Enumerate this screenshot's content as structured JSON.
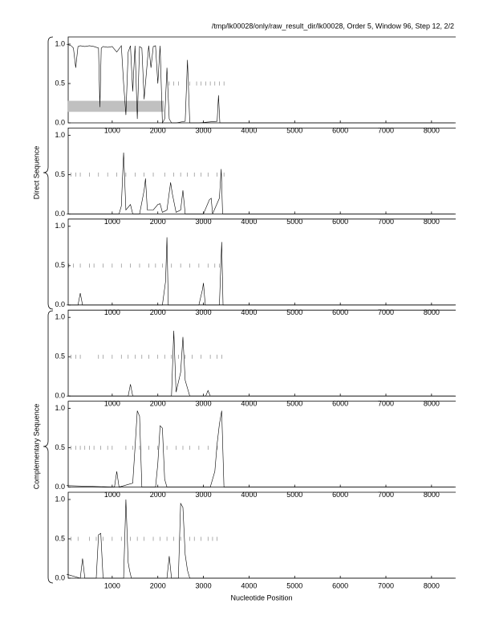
{
  "title": "/tmp/lk00028/only/raw_result_dir/lk00028, Order 5, Window 96, Step 12, 2/2",
  "group_labels": [
    "Direct Sequence",
    "Complementary Sequence"
  ],
  "xlabel": "Nucleotide Position",
  "chart_data": [
    {
      "type": "line",
      "color": "#000000",
      "x": [
        0,
        100,
        150,
        200,
        250,
        300,
        400,
        500,
        600,
        700,
        730,
        760,
        800,
        900,
        1000,
        1100,
        1200,
        1250,
        1300,
        1350,
        1400,
        1450,
        1500,
        1550,
        1600,
        1650,
        1700,
        1800,
        1850,
        1900,
        1950,
        2000,
        2050,
        2100,
        2150,
        2200,
        2250,
        2300,
        2400,
        2600,
        2650,
        2700,
        2750,
        2900,
        3300,
        3330,
        3360,
        3400,
        3600,
        8500
      ],
      "values": [
        1,
        0.98,
        0.95,
        0.7,
        0.97,
        0.98,
        0.97,
        0.98,
        0.97,
        0.95,
        0.2,
        0.95,
        0.97,
        0.96,
        0.97,
        0.9,
        0.98,
        0.5,
        0.1,
        0.9,
        0.98,
        0.4,
        0.98,
        0.05,
        0.97,
        0.95,
        0.3,
        0.98,
        0.7,
        0.97,
        0.98,
        0.5,
        0.98,
        0,
        0.05,
        0.7,
        0.05,
        0,
        0,
        0.02,
        0.8,
        0,
        0,
        0,
        0.02,
        0.35,
        0,
        0,
        0,
        0
      ],
      "tick_marks": [
        2250,
        2350,
        2450,
        2700,
        2850,
        2950,
        3050,
        3150,
        3250,
        3350,
        3450
      ],
      "tick_mark_level": 0.5,
      "region": {
        "x": [
          30,
          2130
        ],
        "y": [
          0.14,
          0.28
        ],
        "color": "#c0c0c0"
      },
      "xlim": [
        0,
        8530
      ],
      "xticks": [
        1000,
        2000,
        3000,
        4000,
        5000,
        6000,
        7000,
        8000
      ],
      "ylim": [
        0,
        1
      ],
      "yticks": [
        {
          "value": 0,
          "label": "0.0"
        },
        0.5,
        {
          "value": 1,
          "label": "1.0"
        }
      ]
    },
    {
      "type": "line",
      "color": "#000000",
      "x": [
        0,
        1150,
        1200,
        1250,
        1300,
        1400,
        1450,
        1600,
        1700,
        1730,
        1770,
        1900,
        2000,
        2050,
        2100,
        2200,
        2280,
        2320,
        2400,
        2500,
        2550,
        2600,
        3000,
        3130,
        3170,
        3200,
        3350,
        3390,
        3420,
        8500
      ],
      "values": [
        0,
        0,
        0.1,
        0.78,
        0.05,
        0.12,
        0,
        0,
        0.3,
        0.45,
        0.05,
        0.05,
        0.12,
        0.13,
        0.02,
        0.05,
        0.4,
        0.25,
        0.02,
        0.05,
        0.3,
        0,
        0,
        0.18,
        0.2,
        0,
        0.2,
        0.57,
        0,
        0
      ],
      "tick_marks": [
        100,
        200,
        300,
        500,
        700,
        900,
        1100,
        1300,
        1500,
        1700,
        1900,
        2150,
        2350,
        2500,
        2650,
        2800,
        2950,
        3100,
        3300,
        3450
      ],
      "tick_mark_level": 0.5,
      "xlim": [
        0,
        8530
      ],
      "xticks": [
        1000,
        2000,
        3000,
        4000,
        5000,
        6000,
        7000,
        8000
      ],
      "ylim": [
        0,
        1
      ],
      "yticks": [
        {
          "value": 0,
          "label": "0.0"
        },
        0.5,
        {
          "value": 1,
          "label": "1.0"
        }
      ]
    },
    {
      "type": "line",
      "color": "#000000",
      "x": [
        0,
        250,
        300,
        350,
        2100,
        2170,
        2200,
        2230,
        2900,
        2980,
        3000,
        3040,
        3350,
        3400,
        3430,
        8500
      ],
      "values": [
        0,
        0,
        0.15,
        0,
        0,
        0.3,
        0.86,
        0,
        0,
        0.2,
        0.28,
        0,
        0,
        0.8,
        0,
        0
      ],
      "tick_marks": [
        50,
        150,
        300,
        500,
        600,
        800,
        1000,
        1200,
        1400,
        1600,
        1800,
        1950,
        2100,
        2300,
        2500,
        2700,
        2900,
        3100,
        3250,
        3350
      ],
      "tick_mark_level": 0.5,
      "xlim": [
        0,
        8530
      ],
      "xticks": [
        1000,
        2000,
        3000,
        4000,
        5000,
        6000,
        7000,
        8000
      ],
      "ylim": [
        0,
        1
      ],
      "yticks": [
        {
          "value": 0,
          "label": "0.0"
        },
        0.5,
        {
          "value": 1,
          "label": "1.0"
        }
      ]
    },
    {
      "type": "line",
      "color": "#000000",
      "x": [
        0,
        1350,
        1400,
        1450,
        2300,
        2350,
        2400,
        2500,
        2550,
        2600,
        2650,
        2700,
        3050,
        3100,
        3150,
        8500
      ],
      "values": [
        0,
        0,
        0.15,
        0,
        0,
        0.83,
        0.05,
        0.3,
        0.75,
        0.2,
        0.1,
        0,
        0,
        0.07,
        0,
        0
      ],
      "tick_marks": [
        100,
        200,
        300,
        700,
        800,
        1000,
        1200,
        1350,
        1500,
        1650,
        1800,
        2000,
        2150,
        2300,
        2450,
        2600,
        2750,
        2950,
        3150,
        3300,
        3400
      ],
      "tick_mark_level": 0.5,
      "xlim": [
        0,
        8530
      ],
      "xticks": [
        1000,
        2000,
        3000,
        4000,
        5000,
        6000,
        7000,
        8000
      ],
      "ylim": [
        0,
        1
      ],
      "yticks": [
        {
          "value": 0,
          "label": "0.0"
        },
        0.5,
        {
          "value": 1,
          "label": "1.0"
        }
      ]
    },
    {
      "type": "line",
      "color": "#000000",
      "x": [
        0,
        1050,
        1100,
        1150,
        1450,
        1500,
        1550,
        1600,
        1650,
        1950,
        2000,
        2050,
        2100,
        2150,
        2200,
        3150,
        3250,
        3300,
        3350,
        3400,
        3450,
        8500
      ],
      "values": [
        0.02,
        0,
        0.2,
        0,
        0.05,
        0.5,
        0.97,
        0.9,
        0,
        0,
        0.3,
        0.78,
        0.75,
        0.1,
        0,
        0,
        0.2,
        0.55,
        0.8,
        0.97,
        0,
        0
      ],
      "tick_marks": [
        100,
        200,
        300,
        400,
        500,
        600,
        750,
        900,
        1000,
        1300,
        1450,
        1600,
        1800,
        2000,
        2200,
        2400,
        2550,
        2700,
        2900,
        3100,
        3300
      ],
      "tick_mark_level": 0.5,
      "xlim": [
        0,
        8530
      ],
      "xticks": [
        1000,
        2000,
        3000,
        4000,
        5000,
        6000,
        7000,
        8000
      ],
      "ylim": [
        0,
        1
      ],
      "yticks": [
        {
          "value": 0,
          "label": "0.0"
        },
        0.5,
        {
          "value": 1,
          "label": "1.0"
        }
      ]
    },
    {
      "type": "line",
      "color": "#000000",
      "x": [
        0,
        300,
        350,
        400,
        650,
        700,
        750,
        800,
        1250,
        1300,
        1350,
        1380,
        1420,
        2200,
        2250,
        2300,
        2450,
        2500,
        2550,
        2600,
        2650,
        2700,
        8500
      ],
      "values": [
        0.05,
        0,
        0.25,
        0,
        0,
        0.55,
        0.57,
        0,
        0,
        1,
        0.2,
        0.1,
        0,
        0,
        0.28,
        0,
        0,
        0.95,
        0.9,
        0.3,
        0.1,
        0,
        0
      ],
      "tick_marks": [
        100,
        250,
        500,
        650,
        800,
        1000,
        1200,
        1400,
        1550,
        1700,
        1900,
        2050,
        2200,
        2350,
        2500,
        2700,
        2800,
        2950,
        3100,
        3200,
        3300
      ],
      "tick_mark_level": 0.5,
      "xlim": [
        0,
        8530
      ],
      "xticks": [
        1000,
        2000,
        3000,
        4000,
        5000,
        6000,
        7000,
        8000
      ],
      "ylim": [
        0,
        1
      ],
      "yticks": [
        {
          "value": 0,
          "label": "0.0"
        },
        0.5,
        {
          "value": 1,
          "label": "1.0"
        }
      ]
    }
  ]
}
